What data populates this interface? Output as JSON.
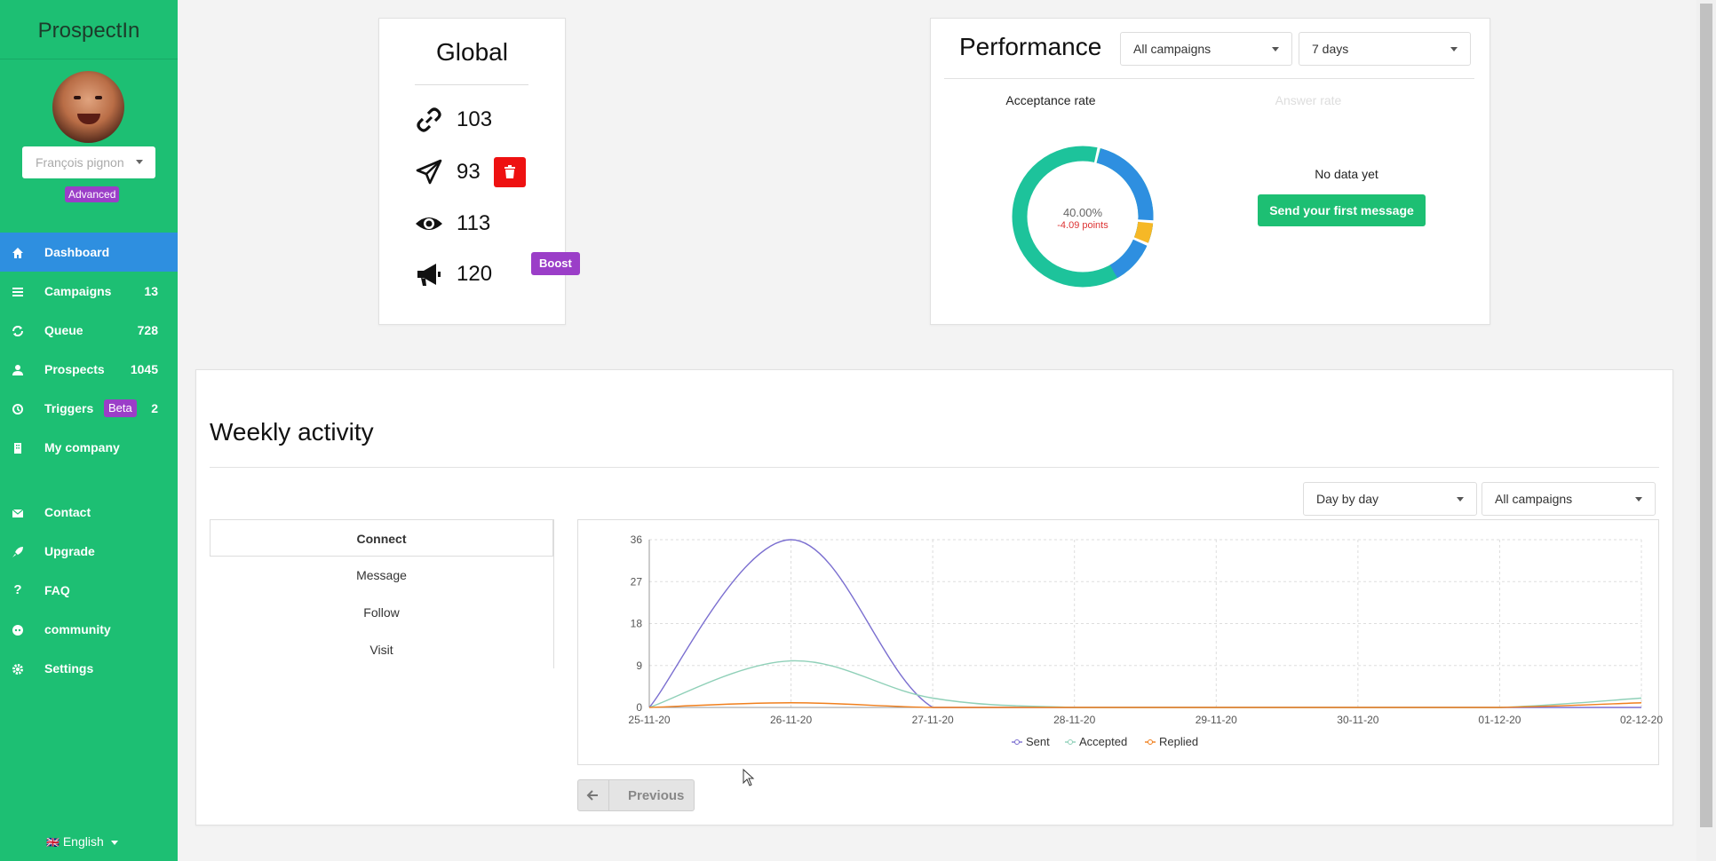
{
  "sidebar": {
    "brand": "ProspectIn",
    "user_name": "François pignon",
    "plan_badge": "Advanced",
    "nav": [
      {
        "label": "Dashboard",
        "count": "",
        "icon": "home-icon"
      },
      {
        "label": "Campaigns",
        "count": "13",
        "icon": "list-icon"
      },
      {
        "label": "Queue",
        "count": "728",
        "icon": "refresh-icon"
      },
      {
        "label": "Prospects",
        "count": "1045",
        "icon": "user-icon"
      },
      {
        "label": "Triggers",
        "count": "2",
        "badge": "Beta",
        "icon": "history-icon"
      },
      {
        "label": "My company",
        "count": "",
        "icon": "building-icon"
      }
    ],
    "nav2": [
      {
        "label": "Contact",
        "icon": "envelope-icon"
      },
      {
        "label": "Upgrade",
        "icon": "rocket-icon"
      },
      {
        "label": "FAQ",
        "icon": "question-icon"
      },
      {
        "label": "community",
        "icon": "discord-icon"
      },
      {
        "label": "Settings",
        "icon": "gear-icon"
      }
    ],
    "language": "English",
    "language_flag": "🇬🇧"
  },
  "global": {
    "title": "Global",
    "stats": [
      {
        "icon": "link-icon",
        "value": "103"
      },
      {
        "icon": "paper-plane-icon",
        "value": "93"
      },
      {
        "icon": "eye-icon",
        "value": "113"
      },
      {
        "icon": "megaphone-icon",
        "value": "120"
      }
    ],
    "boost_label": "Boost"
  },
  "performance": {
    "title": "Performance",
    "campaign_filter": "All campaigns",
    "period_filter": "7 days",
    "acceptance_label": "Acceptance rate",
    "answer_label": "Answer rate",
    "donut_value": "40.00%",
    "donut_delta": "-4.09 points",
    "no_data": "No data yet",
    "send_first_label": "Send your first message"
  },
  "weekly": {
    "title": "Weekly activity",
    "granularity_filter": "Day by day",
    "campaign_filter": "All campaigns",
    "tabs": [
      "Connect",
      "Message",
      "Follow",
      "Visit"
    ],
    "active_tab": "Connect",
    "previous_label": "Previous"
  },
  "chart_data": {
    "type": "line",
    "categories": [
      "25-11-20",
      "26-11-20",
      "27-11-20",
      "28-11-20",
      "29-11-20",
      "30-11-20",
      "01-12-20",
      "02-12-20"
    ],
    "ylim": [
      0,
      36
    ],
    "yticks": [
      0,
      9,
      18,
      27,
      36
    ],
    "grid": true,
    "legend_position": "bottom",
    "series": [
      {
        "name": "Sent",
        "color": "#7b6fd0",
        "values": [
          0,
          36,
          0,
          0,
          0,
          0,
          0,
          0
        ]
      },
      {
        "name": "Accepted",
        "color": "#8fd0b8",
        "values": [
          0,
          10,
          2,
          0,
          0,
          0,
          0,
          2
        ]
      },
      {
        "name": "Replied",
        "color": "#f07f1d",
        "values": [
          0,
          1,
          0,
          0,
          0,
          0,
          0,
          1
        ]
      }
    ]
  }
}
